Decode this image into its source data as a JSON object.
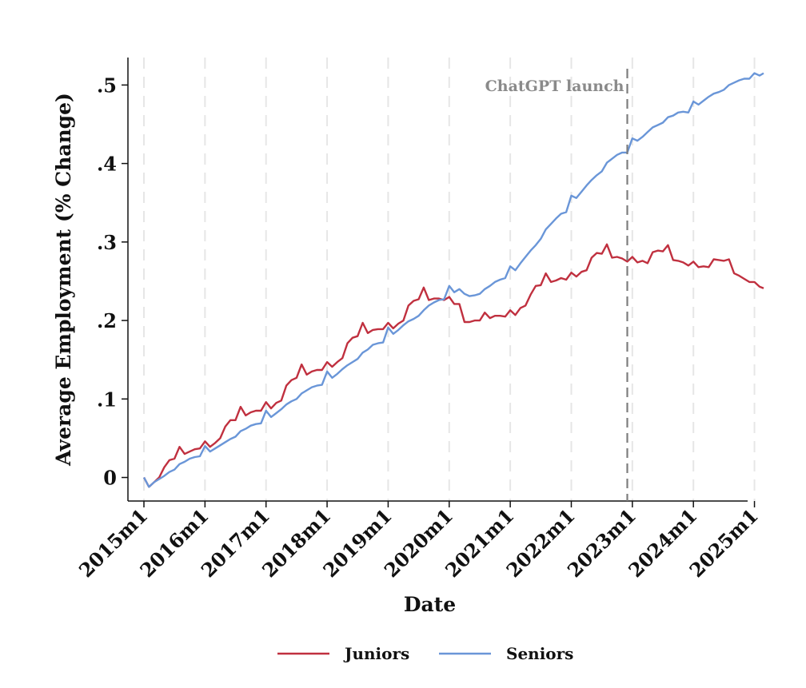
{
  "chart_data": {
    "type": "line",
    "title": "",
    "xlabel": "Date",
    "ylabel": "Average Employment (% Change)",
    "xlim": [
      2015.0,
      2025.15
    ],
    "ylim": [
      -0.03,
      0.535
    ],
    "x_ticks": [
      2015,
      2016,
      2017,
      2018,
      2019,
      2020,
      2021,
      2022,
      2023,
      2024,
      2025
    ],
    "x_tick_labels": [
      "2015m1",
      "2016m1",
      "2017m1",
      "2018m1",
      "2019m1",
      "2020m1",
      "2021m1",
      "2022m1",
      "2023m1",
      "2024m1",
      "2025m1"
    ],
    "y_ticks": [
      0,
      0.1,
      0.2,
      0.3,
      0.4,
      0.5
    ],
    "y_tick_labels": [
      "0",
      ".1",
      ".2",
      ".3",
      ".4",
      ".5"
    ],
    "grid": "vertical dashed at x ticks",
    "legend": "bottom",
    "annotations": [
      {
        "text": "ChatGPT launch",
        "x": 2022.917,
        "line_style": "dashed"
      }
    ],
    "series": [
      {
        "name": "Juniors",
        "color": "#c0303f",
        "points": [
          [
            2015.0,
            0.0
          ],
          [
            2015.083,
            -0.012
          ],
          [
            2015.167,
            -0.006
          ],
          [
            2015.25,
            0.0
          ],
          [
            2015.333,
            0.013
          ],
          [
            2015.417,
            0.022
          ],
          [
            2015.5,
            0.024
          ],
          [
            2015.583,
            0.039
          ],
          [
            2015.667,
            0.03
          ],
          [
            2015.75,
            0.033
          ],
          [
            2015.833,
            0.036
          ],
          [
            2015.917,
            0.037
          ],
          [
            2016.0,
            0.046
          ],
          [
            2016.083,
            0.039
          ],
          [
            2016.167,
            0.044
          ],
          [
            2016.25,
            0.05
          ],
          [
            2016.333,
            0.065
          ],
          [
            2016.417,
            0.073
          ],
          [
            2016.5,
            0.073
          ],
          [
            2016.583,
            0.09
          ],
          [
            2016.667,
            0.079
          ],
          [
            2016.75,
            0.083
          ],
          [
            2016.833,
            0.085
          ],
          [
            2016.917,
            0.085
          ],
          [
            2017.0,
            0.096
          ],
          [
            2017.083,
            0.088
          ],
          [
            2017.167,
            0.095
          ],
          [
            2017.25,
            0.098
          ],
          [
            2017.333,
            0.117
          ],
          [
            2017.417,
            0.124
          ],
          [
            2017.5,
            0.127
          ],
          [
            2017.583,
            0.144
          ],
          [
            2017.667,
            0.131
          ],
          [
            2017.75,
            0.135
          ],
          [
            2017.833,
            0.137
          ],
          [
            2017.917,
            0.137
          ],
          [
            2018.0,
            0.147
          ],
          [
            2018.083,
            0.141
          ],
          [
            2018.167,
            0.147
          ],
          [
            2018.25,
            0.152
          ],
          [
            2018.333,
            0.171
          ],
          [
            2018.417,
            0.178
          ],
          [
            2018.5,
            0.18
          ],
          [
            2018.583,
            0.197
          ],
          [
            2018.667,
            0.184
          ],
          [
            2018.75,
            0.188
          ],
          [
            2018.833,
            0.189
          ],
          [
            2018.917,
            0.189
          ],
          [
            2019.0,
            0.197
          ],
          [
            2019.083,
            0.19
          ],
          [
            2019.167,
            0.196
          ],
          [
            2019.25,
            0.2
          ],
          [
            2019.333,
            0.219
          ],
          [
            2019.417,
            0.225
          ],
          [
            2019.5,
            0.227
          ],
          [
            2019.583,
            0.242
          ],
          [
            2019.667,
            0.226
          ],
          [
            2019.75,
            0.228
          ],
          [
            2019.833,
            0.228
          ],
          [
            2019.917,
            0.226
          ],
          [
            2020.0,
            0.23
          ],
          [
            2020.083,
            0.221
          ],
          [
            2020.167,
            0.221
          ],
          [
            2020.25,
            0.198
          ],
          [
            2020.333,
            0.198
          ],
          [
            2020.417,
            0.2
          ],
          [
            2020.5,
            0.2
          ],
          [
            2020.583,
            0.21
          ],
          [
            2020.667,
            0.203
          ],
          [
            2020.75,
            0.206
          ],
          [
            2020.833,
            0.206
          ],
          [
            2020.917,
            0.205
          ],
          [
            2021.0,
            0.213
          ],
          [
            2021.083,
            0.207
          ],
          [
            2021.167,
            0.216
          ],
          [
            2021.25,
            0.219
          ],
          [
            2021.333,
            0.233
          ],
          [
            2021.417,
            0.244
          ],
          [
            2021.5,
            0.245
          ],
          [
            2021.583,
            0.26
          ],
          [
            2021.667,
            0.249
          ],
          [
            2021.75,
            0.251
          ],
          [
            2021.833,
            0.254
          ],
          [
            2021.917,
            0.252
          ],
          [
            2022.0,
            0.261
          ],
          [
            2022.083,
            0.256
          ],
          [
            2022.167,
            0.262
          ],
          [
            2022.25,
            0.264
          ],
          [
            2022.333,
            0.28
          ],
          [
            2022.417,
            0.286
          ],
          [
            2022.5,
            0.285
          ],
          [
            2022.583,
            0.297
          ],
          [
            2022.667,
            0.28
          ],
          [
            2022.75,
            0.281
          ],
          [
            2022.833,
            0.279
          ],
          [
            2022.917,
            0.275
          ],
          [
            2023.0,
            0.281
          ],
          [
            2023.083,
            0.274
          ],
          [
            2023.167,
            0.276
          ],
          [
            2023.25,
            0.273
          ],
          [
            2023.333,
            0.287
          ],
          [
            2023.417,
            0.289
          ],
          [
            2023.5,
            0.288
          ],
          [
            2023.583,
            0.296
          ],
          [
            2023.667,
            0.277
          ],
          [
            2023.75,
            0.276
          ],
          [
            2023.833,
            0.274
          ],
          [
            2023.917,
            0.27
          ],
          [
            2024.0,
            0.275
          ],
          [
            2024.083,
            0.268
          ],
          [
            2024.167,
            0.269
          ],
          [
            2024.25,
            0.268
          ],
          [
            2024.333,
            0.278
          ],
          [
            2024.417,
            0.277
          ],
          [
            2024.5,
            0.276
          ],
          [
            2024.583,
            0.278
          ],
          [
            2024.667,
            0.26
          ],
          [
            2024.75,
            0.257
          ],
          [
            2024.833,
            0.253
          ],
          [
            2024.917,
            0.249
          ],
          [
            2025.0,
            0.249
          ],
          [
            2025.083,
            0.243
          ],
          [
            2025.15,
            0.241
          ]
        ]
      },
      {
        "name": "Seniors",
        "color": "#6a96d8",
        "points": [
          [
            2015.0,
            0.0
          ],
          [
            2015.083,
            -0.012
          ],
          [
            2015.167,
            -0.006
          ],
          [
            2015.25,
            -0.002
          ],
          [
            2015.333,
            0.002
          ],
          [
            2015.417,
            0.007
          ],
          [
            2015.5,
            0.01
          ],
          [
            2015.583,
            0.017
          ],
          [
            2015.667,
            0.02
          ],
          [
            2015.75,
            0.024
          ],
          [
            2015.833,
            0.026
          ],
          [
            2015.917,
            0.027
          ],
          [
            2016.0,
            0.04
          ],
          [
            2016.083,
            0.033
          ],
          [
            2016.167,
            0.037
          ],
          [
            2016.25,
            0.041
          ],
          [
            2016.333,
            0.045
          ],
          [
            2016.417,
            0.049
          ],
          [
            2016.5,
            0.052
          ],
          [
            2016.583,
            0.059
          ],
          [
            2016.667,
            0.062
          ],
          [
            2016.75,
            0.066
          ],
          [
            2016.833,
            0.068
          ],
          [
            2016.917,
            0.069
          ],
          [
            2017.0,
            0.085
          ],
          [
            2017.083,
            0.077
          ],
          [
            2017.167,
            0.082
          ],
          [
            2017.25,
            0.087
          ],
          [
            2017.333,
            0.093
          ],
          [
            2017.417,
            0.097
          ],
          [
            2017.5,
            0.1
          ],
          [
            2017.583,
            0.107
          ],
          [
            2017.667,
            0.111
          ],
          [
            2017.75,
            0.115
          ],
          [
            2017.833,
            0.117
          ],
          [
            2017.917,
            0.118
          ],
          [
            2018.0,
            0.135
          ],
          [
            2018.083,
            0.127
          ],
          [
            2018.167,
            0.132
          ],
          [
            2018.25,
            0.138
          ],
          [
            2018.333,
            0.143
          ],
          [
            2018.417,
            0.147
          ],
          [
            2018.5,
            0.151
          ],
          [
            2018.583,
            0.159
          ],
          [
            2018.667,
            0.163
          ],
          [
            2018.75,
            0.169
          ],
          [
            2018.833,
            0.171
          ],
          [
            2018.917,
            0.172
          ],
          [
            2019.0,
            0.191
          ],
          [
            2019.083,
            0.183
          ],
          [
            2019.167,
            0.188
          ],
          [
            2019.25,
            0.194
          ],
          [
            2019.333,
            0.199
          ],
          [
            2019.417,
            0.202
          ],
          [
            2019.5,
            0.206
          ],
          [
            2019.583,
            0.213
          ],
          [
            2019.667,
            0.219
          ],
          [
            2019.75,
            0.223
          ],
          [
            2019.833,
            0.226
          ],
          [
            2019.917,
            0.227
          ],
          [
            2020.0,
            0.244
          ],
          [
            2020.083,
            0.236
          ],
          [
            2020.167,
            0.24
          ],
          [
            2020.25,
            0.234
          ],
          [
            2020.333,
            0.231
          ],
          [
            2020.417,
            0.232
          ],
          [
            2020.5,
            0.234
          ],
          [
            2020.583,
            0.24
          ],
          [
            2020.667,
            0.244
          ],
          [
            2020.75,
            0.249
          ],
          [
            2020.833,
            0.252
          ],
          [
            2020.917,
            0.254
          ],
          [
            2021.0,
            0.269
          ],
          [
            2021.083,
            0.264
          ],
          [
            2021.167,
            0.273
          ],
          [
            2021.25,
            0.281
          ],
          [
            2021.333,
            0.289
          ],
          [
            2021.417,
            0.296
          ],
          [
            2021.5,
            0.304
          ],
          [
            2021.583,
            0.316
          ],
          [
            2021.667,
            0.323
          ],
          [
            2021.75,
            0.33
          ],
          [
            2021.833,
            0.336
          ],
          [
            2021.917,
            0.338
          ],
          [
            2022.0,
            0.359
          ],
          [
            2022.083,
            0.356
          ],
          [
            2022.167,
            0.364
          ],
          [
            2022.25,
            0.372
          ],
          [
            2022.333,
            0.379
          ],
          [
            2022.417,
            0.385
          ],
          [
            2022.5,
            0.39
          ],
          [
            2022.583,
            0.401
          ],
          [
            2022.667,
            0.406
          ],
          [
            2022.75,
            0.411
          ],
          [
            2022.833,
            0.414
          ],
          [
            2022.917,
            0.414
          ],
          [
            2023.0,
            0.432
          ],
          [
            2023.083,
            0.429
          ],
          [
            2023.167,
            0.434
          ],
          [
            2023.25,
            0.44
          ],
          [
            2023.333,
            0.446
          ],
          [
            2023.417,
            0.449
          ],
          [
            2023.5,
            0.452
          ],
          [
            2023.583,
            0.459
          ],
          [
            2023.667,
            0.461
          ],
          [
            2023.75,
            0.465
          ],
          [
            2023.833,
            0.466
          ],
          [
            2023.917,
            0.465
          ],
          [
            2024.0,
            0.479
          ],
          [
            2024.083,
            0.475
          ],
          [
            2024.167,
            0.48
          ],
          [
            2024.25,
            0.485
          ],
          [
            2024.333,
            0.489
          ],
          [
            2024.417,
            0.491
          ],
          [
            2024.5,
            0.494
          ],
          [
            2024.583,
            0.5
          ],
          [
            2024.667,
            0.503
          ],
          [
            2024.75,
            0.506
          ],
          [
            2024.833,
            0.508
          ],
          [
            2024.917,
            0.508
          ],
          [
            2025.0,
            0.515
          ],
          [
            2025.083,
            0.512
          ],
          [
            2025.15,
            0.515
          ]
        ]
      }
    ]
  }
}
